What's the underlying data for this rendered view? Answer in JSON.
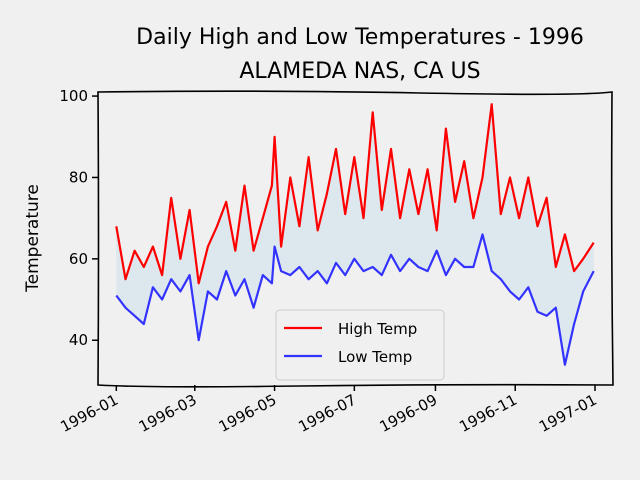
{
  "chart_data": {
    "type": "line",
    "title": "Daily High and Low Temperatures - 1996",
    "subtitle": "ALAMEDA NAS, CA US",
    "xlabel": "",
    "ylabel": "Temperature",
    "xlim": [
      "1995-12-18",
      "1997-01-14"
    ],
    "ylim": [
      29,
      101
    ],
    "x_ticks": [
      "1996-01",
      "1996-03",
      "1996-05",
      "1996-07",
      "1996-09",
      "1996-11",
      "1997-01"
    ],
    "y_ticks": [
      40,
      60,
      80,
      100
    ],
    "grid": false,
    "legend_position": "lower center",
    "fill_between": true,
    "fill_color": "#dde8ee",
    "series": [
      {
        "name": "High Temp",
        "color": "#ff0000",
        "x": [
          "1996-01-01",
          "1996-01-08",
          "1996-01-15",
          "1996-01-22",
          "1996-01-29",
          "1996-02-05",
          "1996-02-12",
          "1996-02-19",
          "1996-02-26",
          "1996-03-04",
          "1996-03-11",
          "1996-03-18",
          "1996-03-25",
          "1996-04-01",
          "1996-04-08",
          "1996-04-15",
          "1996-04-22",
          "1996-04-29",
          "1996-05-01",
          "1996-05-06",
          "1996-05-13",
          "1996-05-20",
          "1996-05-27",
          "1996-06-03",
          "1996-06-10",
          "1996-06-17",
          "1996-06-24",
          "1996-07-01",
          "1996-07-08",
          "1996-07-15",
          "1996-07-22",
          "1996-07-29",
          "1996-08-05",
          "1996-08-12",
          "1996-08-19",
          "1996-08-26",
          "1996-09-02",
          "1996-09-09",
          "1996-09-16",
          "1996-09-23",
          "1996-09-30",
          "1996-10-07",
          "1996-10-14",
          "1996-10-21",
          "1996-10-28",
          "1996-11-04",
          "1996-11-11",
          "1996-11-18",
          "1996-11-25",
          "1996-12-02",
          "1996-12-09",
          "1996-12-16",
          "1996-12-23",
          "1996-12-31"
        ],
        "values": [
          68,
          55,
          62,
          58,
          63,
          56,
          75,
          60,
          72,
          54,
          63,
          68,
          74,
          62,
          78,
          62,
          70,
          78,
          90,
          63,
          80,
          68,
          85,
          67,
          76,
          87,
          71,
          85,
          70,
          96,
          72,
          87,
          70,
          82,
          71,
          82,
          67,
          92,
          74,
          84,
          70,
          80,
          98,
          71,
          80,
          70,
          80,
          68,
          75,
          58,
          66,
          57,
          60,
          64
        ]
      },
      {
        "name": "Low Temp",
        "color": "#3333ff",
        "x": [
          "1996-01-01",
          "1996-01-08",
          "1996-01-15",
          "1996-01-22",
          "1996-01-29",
          "1996-02-05",
          "1996-02-12",
          "1996-02-19",
          "1996-02-26",
          "1996-03-04",
          "1996-03-11",
          "1996-03-18",
          "1996-03-25",
          "1996-04-01",
          "1996-04-08",
          "1996-04-15",
          "1996-04-22",
          "1996-04-29",
          "1996-05-01",
          "1996-05-06",
          "1996-05-13",
          "1996-05-20",
          "1996-05-27",
          "1996-06-03",
          "1996-06-10",
          "1996-06-17",
          "1996-06-24",
          "1996-07-01",
          "1996-07-08",
          "1996-07-15",
          "1996-07-22",
          "1996-07-29",
          "1996-08-05",
          "1996-08-12",
          "1996-08-19",
          "1996-08-26",
          "1996-09-02",
          "1996-09-09",
          "1996-09-16",
          "1996-09-23",
          "1996-09-30",
          "1996-10-07",
          "1996-10-14",
          "1996-10-21",
          "1996-10-28",
          "1996-11-04",
          "1996-11-11",
          "1996-11-18",
          "1996-11-25",
          "1996-12-02",
          "1996-12-09",
          "1996-12-16",
          "1996-12-23",
          "1996-12-31"
        ],
        "values": [
          51,
          48,
          46,
          44,
          53,
          50,
          55,
          52,
          56,
          40,
          52,
          50,
          57,
          51,
          55,
          48,
          56,
          54,
          63,
          57,
          56,
          58,
          55,
          57,
          54,
          59,
          56,
          60,
          57,
          58,
          56,
          61,
          57,
          60,
          58,
          57,
          62,
          56,
          60,
          58,
          58,
          66,
          57,
          55,
          52,
          50,
          53,
          47,
          46,
          48,
          34,
          44,
          52,
          57
        ]
      }
    ]
  }
}
